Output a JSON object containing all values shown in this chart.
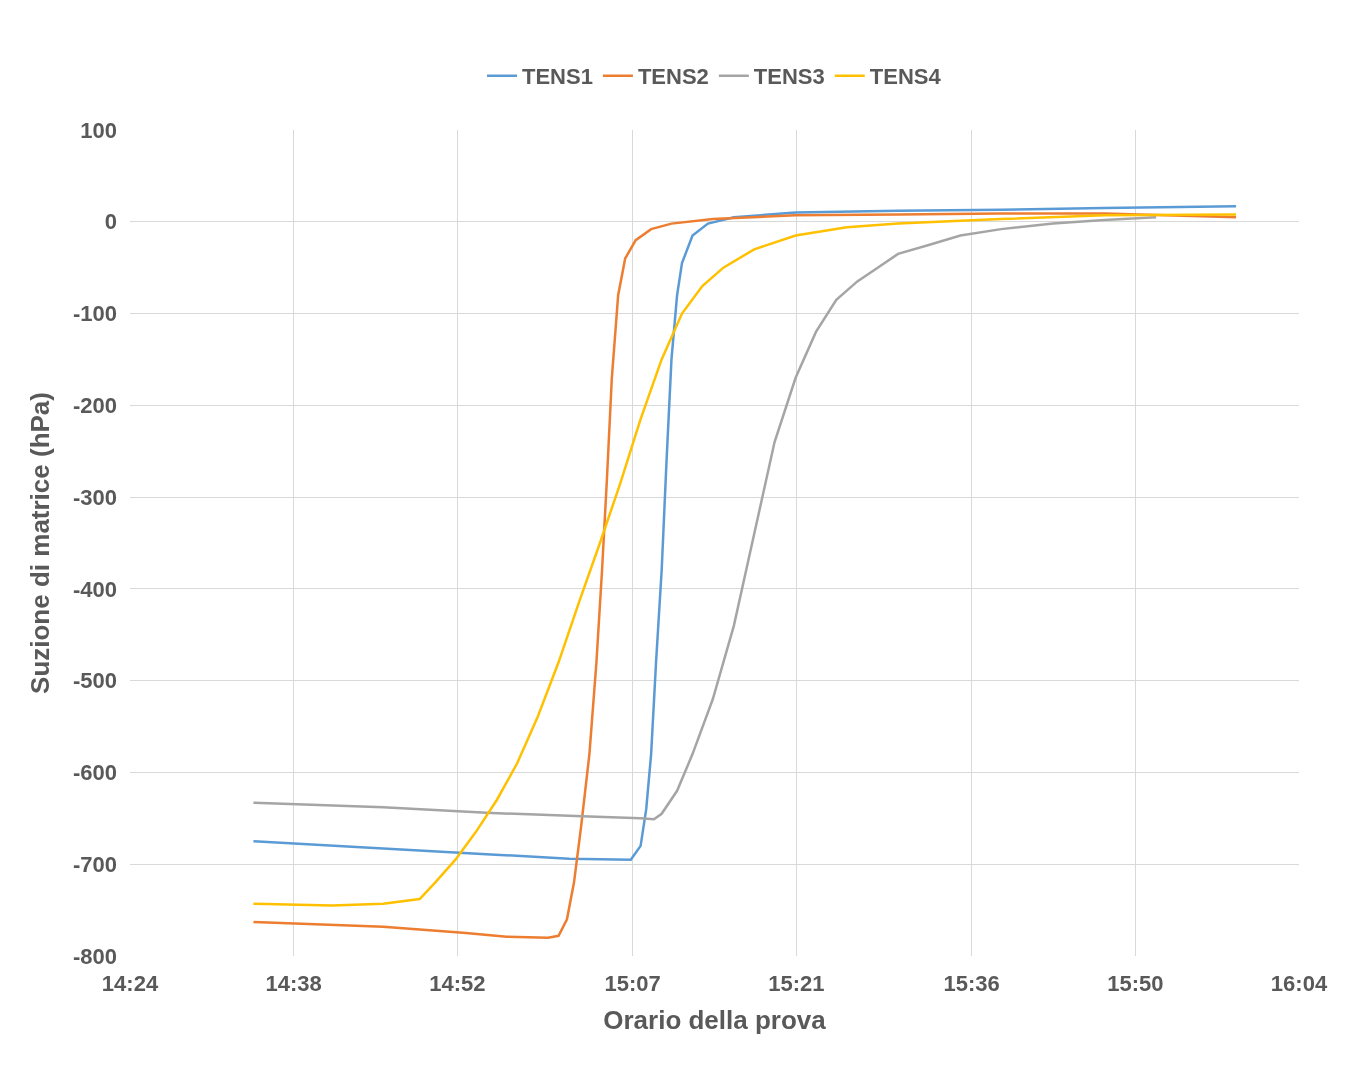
{
  "chart_data": {
    "type": "line",
    "xlabel": "Orario della prova",
    "ylabel": "Suzione di matrice (hPa)",
    "xlim": [
      14.4,
      16.0667
    ],
    "xticks": [
      {
        "value": 14.4,
        "label": "14:24"
      },
      {
        "value": 14.6333,
        "label": "14:38"
      },
      {
        "value": 14.8667,
        "label": "14:52"
      },
      {
        "value": 15.1167,
        "label": "15:07"
      },
      {
        "value": 15.35,
        "label": "15:21"
      },
      {
        "value": 15.6,
        "label": "15:36"
      },
      {
        "value": 15.8333,
        "label": "15:50"
      },
      {
        "value": 16.0667,
        "label": "16:04"
      }
    ],
    "ylim": [
      -800,
      100
    ],
    "yticks": [
      -800,
      -700,
      -600,
      -500,
      -400,
      -300,
      -200,
      -100,
      0,
      100
    ],
    "grid": true,
    "legend": "top",
    "marker": "none",
    "line_style": "solid",
    "series": [
      {
        "name": "TENS1",
        "color": "#5b9bd5",
        "x": [
          14.576,
          14.761,
          14.908,
          15.026,
          15.114,
          15.128,
          15.136,
          15.143,
          15.15,
          15.158,
          15.165,
          15.172,
          15.18,
          15.187,
          15.202,
          15.224,
          15.261,
          15.349,
          15.495,
          15.642,
          15.789,
          15.977
        ],
        "values": [
          -675,
          -683,
          -689,
          -694,
          -695,
          -680,
          -640,
          -580,
          -480,
          -380,
          -260,
          -150,
          -80,
          -45,
          -15,
          -2,
          5,
          10,
          12,
          13,
          15,
          17
        ]
      },
      {
        "name": "TENS2",
        "color": "#ed7d31",
        "x": [
          14.576,
          14.761,
          14.879,
          14.937,
          14.996,
          15.011,
          15.023,
          15.033,
          15.043,
          15.055,
          15.065,
          15.073,
          15.08,
          15.087,
          15.096,
          15.106,
          15.121,
          15.143,
          15.172,
          15.231,
          15.349,
          15.495,
          15.642,
          15.789,
          15.977
        ],
        "values": [
          -763,
          -768,
          -775,
          -779,
          -780,
          -778,
          -760,
          -720,
          -660,
          -580,
          -480,
          -380,
          -280,
          -170,
          -80,
          -40,
          -20,
          -8,
          -2,
          3,
          7,
          8,
          9,
          9,
          5
        ]
      },
      {
        "name": "TENS3",
        "color": "#a5a5a5",
        "x": [
          14.576,
          14.761,
          14.908,
          15.055,
          15.128,
          15.147,
          15.158,
          15.18,
          15.202,
          15.231,
          15.261,
          15.29,
          15.319,
          15.349,
          15.378,
          15.407,
          15.437,
          15.466,
          15.495,
          15.54,
          15.584,
          15.642,
          15.716,
          15.789,
          15.863
        ],
        "values": [
          -633,
          -638,
          -644,
          -648,
          -650,
          -651,
          -645,
          -620,
          -580,
          -520,
          -440,
          -340,
          -240,
          -170,
          -120,
          -85,
          -65,
          -50,
          -35,
          -25,
          -15,
          -8,
          -2,
          2,
          5
        ]
      },
      {
        "name": "TENS4",
        "color": "#ffc000",
        "x": [
          14.576,
          14.688,
          14.761,
          14.813,
          14.835,
          14.864,
          14.893,
          14.923,
          14.952,
          14.981,
          15.011,
          15.04,
          15.07,
          15.099,
          15.128,
          15.158,
          15.187,
          15.216,
          15.246,
          15.29,
          15.349,
          15.422,
          15.495,
          15.642,
          15.789,
          15.977
        ],
        "values": [
          -743,
          -745,
          -743,
          -738,
          -720,
          -695,
          -665,
          -630,
          -590,
          -540,
          -480,
          -415,
          -350,
          -285,
          -215,
          -150,
          -100,
          -70,
          -50,
          -30,
          -15,
          -6,
          -2,
          3,
          7,
          8
        ]
      }
    ]
  }
}
